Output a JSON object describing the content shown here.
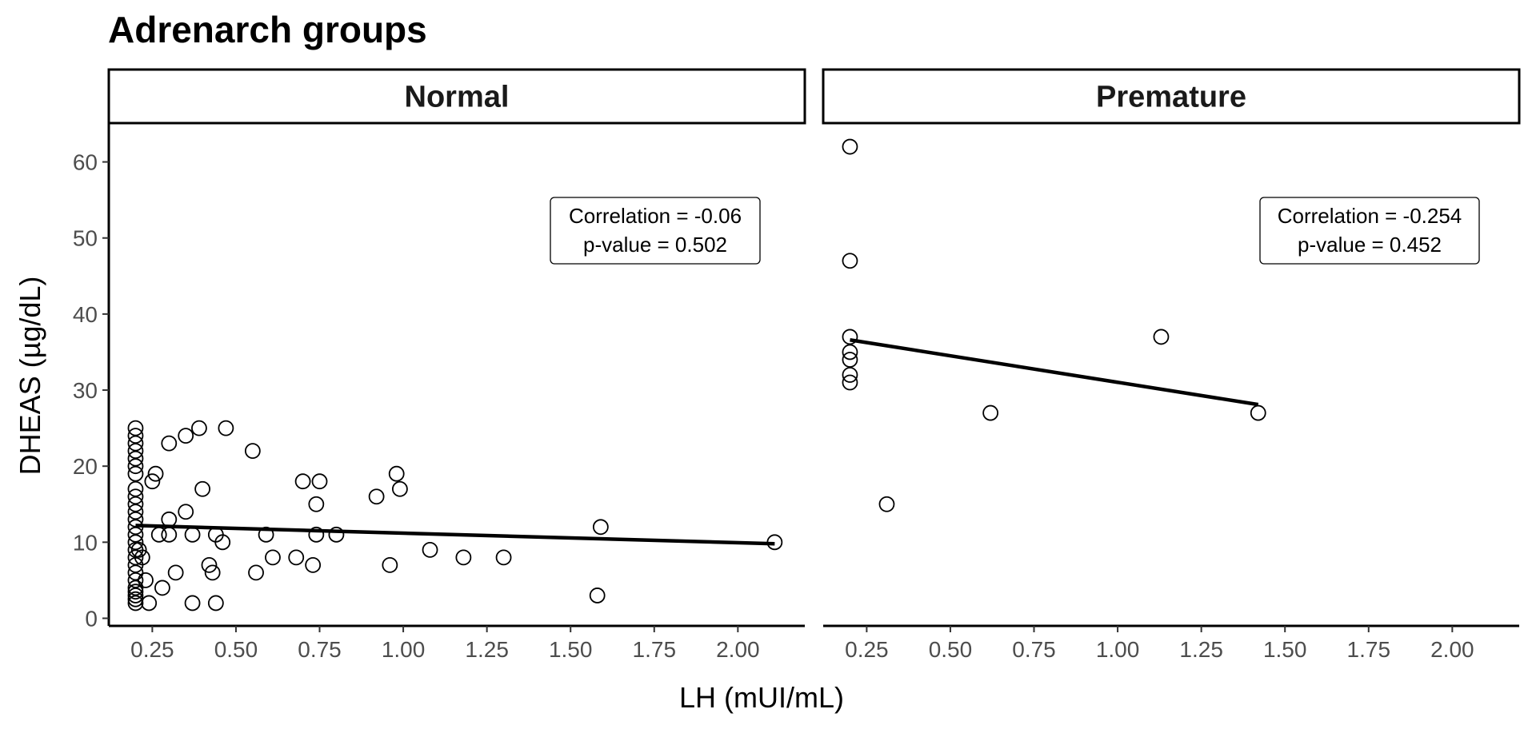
{
  "chart_data": {
    "type": "scatter",
    "title": "Adrenarch groups",
    "xlabel": "LH (mUI/mL)",
    "ylabel": "DHEAS (µg/dL)",
    "xlim": [
      0.12,
      2.2
    ],
    "ylim": [
      -1,
      65
    ],
    "x_ticks": [
      "0.25",
      "0.50",
      "0.75",
      "1.00",
      "1.25",
      "1.50",
      "1.75",
      "2.00"
    ],
    "y_ticks": [
      "0",
      "10",
      "20",
      "30",
      "40",
      "50",
      "60"
    ],
    "grid": false,
    "marker": "open-circle",
    "panels": [
      {
        "name": "Normal",
        "annotation": {
          "correlation": "Correlation = -0.06",
          "pvalue": "p-value = 0.502"
        },
        "fit_line": {
          "x": [
            0.2,
            2.11
          ],
          "y": [
            12.2,
            9.8
          ]
        },
        "points": [
          [
            0.2,
            2
          ],
          [
            0.2,
            2.5
          ],
          [
            0.2,
            3
          ],
          [
            0.2,
            3.5
          ],
          [
            0.2,
            4
          ],
          [
            0.2,
            5
          ],
          [
            0.2,
            6
          ],
          [
            0.2,
            7
          ],
          [
            0.2,
            8
          ],
          [
            0.2,
            9
          ],
          [
            0.2,
            10
          ],
          [
            0.2,
            11
          ],
          [
            0.2,
            12
          ],
          [
            0.2,
            13
          ],
          [
            0.2,
            14
          ],
          [
            0.2,
            15
          ],
          [
            0.2,
            16
          ],
          [
            0.2,
            17
          ],
          [
            0.2,
            19
          ],
          [
            0.2,
            20
          ],
          [
            0.2,
            21
          ],
          [
            0.2,
            22
          ],
          [
            0.2,
            23
          ],
          [
            0.2,
            24
          ],
          [
            0.2,
            25
          ],
          [
            0.21,
            9
          ],
          [
            0.22,
            8
          ],
          [
            0.23,
            5
          ],
          [
            0.24,
            2
          ],
          [
            0.25,
            18
          ],
          [
            0.26,
            19
          ],
          [
            0.27,
            11
          ],
          [
            0.28,
            4
          ],
          [
            0.3,
            11
          ],
          [
            0.3,
            13
          ],
          [
            0.3,
            23
          ],
          [
            0.32,
            6
          ],
          [
            0.35,
            24
          ],
          [
            0.35,
            14
          ],
          [
            0.37,
            2
          ],
          [
            0.37,
            11
          ],
          [
            0.39,
            25
          ],
          [
            0.4,
            17
          ],
          [
            0.42,
            7
          ],
          [
            0.43,
            6
          ],
          [
            0.44,
            2
          ],
          [
            0.44,
            11
          ],
          [
            0.46,
            10
          ],
          [
            0.47,
            25
          ],
          [
            0.55,
            22
          ],
          [
            0.56,
            6
          ],
          [
            0.59,
            11
          ],
          [
            0.61,
            8
          ],
          [
            0.68,
            8
          ],
          [
            0.7,
            18
          ],
          [
            0.73,
            7
          ],
          [
            0.74,
            11
          ],
          [
            0.74,
            15
          ],
          [
            0.75,
            18
          ],
          [
            0.8,
            11
          ],
          [
            0.92,
            16
          ],
          [
            0.96,
            7
          ],
          [
            0.98,
            19
          ],
          [
            0.99,
            17
          ],
          [
            1.08,
            9
          ],
          [
            1.18,
            8
          ],
          [
            1.3,
            8
          ],
          [
            1.58,
            3
          ],
          [
            1.59,
            12
          ],
          [
            2.11,
            10
          ]
        ]
      },
      {
        "name": "Premature",
        "annotation": {
          "correlation": "Correlation = -0.254",
          "pvalue": "p-value = 0.452"
        },
        "fit_line": {
          "x": [
            0.2,
            1.42
          ],
          "y": [
            36.6,
            28.1
          ]
        },
        "points": [
          [
            0.2,
            62
          ],
          [
            0.2,
            47
          ],
          [
            0.2,
            37
          ],
          [
            0.2,
            35
          ],
          [
            0.2,
            34
          ],
          [
            0.2,
            32
          ],
          [
            0.2,
            31
          ],
          [
            0.31,
            15
          ],
          [
            0.62,
            27
          ],
          [
            1.13,
            37
          ],
          [
            1.42,
            27
          ]
        ]
      }
    ]
  }
}
